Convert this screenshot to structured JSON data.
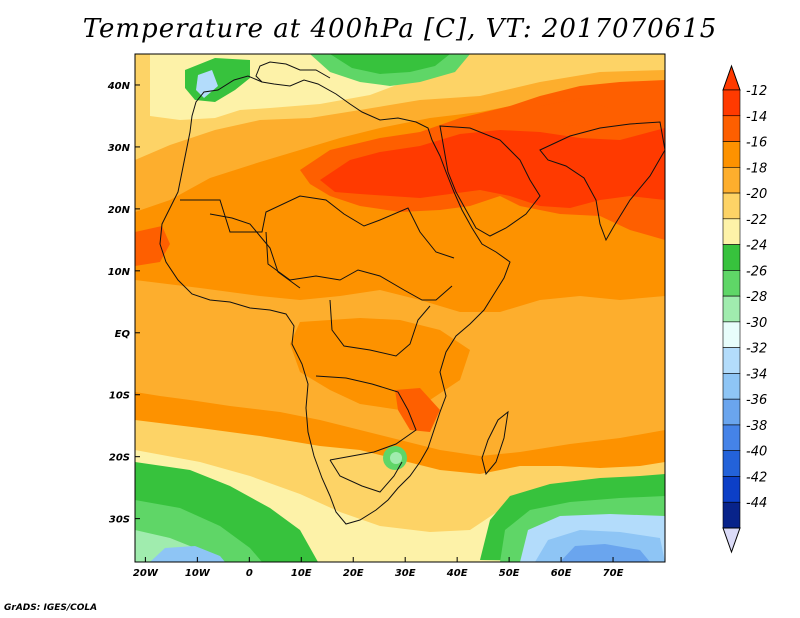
{
  "title": "Temperature at 400hPa [C], VT: 2017070615",
  "footer": "GrADS: IGES/COLA",
  "map": {
    "lon_range": [
      -22,
      80
    ],
    "lat_range": [
      -37,
      45
    ],
    "x_ticks": [
      "20W",
      "10W",
      "0",
      "10E",
      "20E",
      "30E",
      "40E",
      "50E",
      "60E",
      "70E"
    ],
    "y_ticks": [
      "40N",
      "30N",
      "20N",
      "10N",
      "EQ",
      "10S",
      "20S",
      "30S"
    ],
    "units": "C"
  },
  "colorbar": {
    "labels": [
      "-12",
      "-14",
      "-16",
      "-18",
      "-20",
      "-22",
      "-24",
      "-26",
      "-28",
      "-30",
      "-32",
      "-34",
      "-36",
      "-38",
      "-40",
      "-42",
      "-44"
    ],
    "colors": [
      "#ff3a00",
      "#fe5f00",
      "#fd9200",
      "#fdae2d",
      "#fdd366",
      "#fdf2a8",
      "#37c23d",
      "#5fd667",
      "#a0ecae",
      "#e8fdfb",
      "#b3dcfb",
      "#8ec5f5",
      "#6aa5ee",
      "#4583e8",
      "#2362d9",
      "#0c3fc7",
      "#08238a"
    ],
    "over_color": "#ff3a00",
    "under_color": "#dbdbf8"
  }
}
